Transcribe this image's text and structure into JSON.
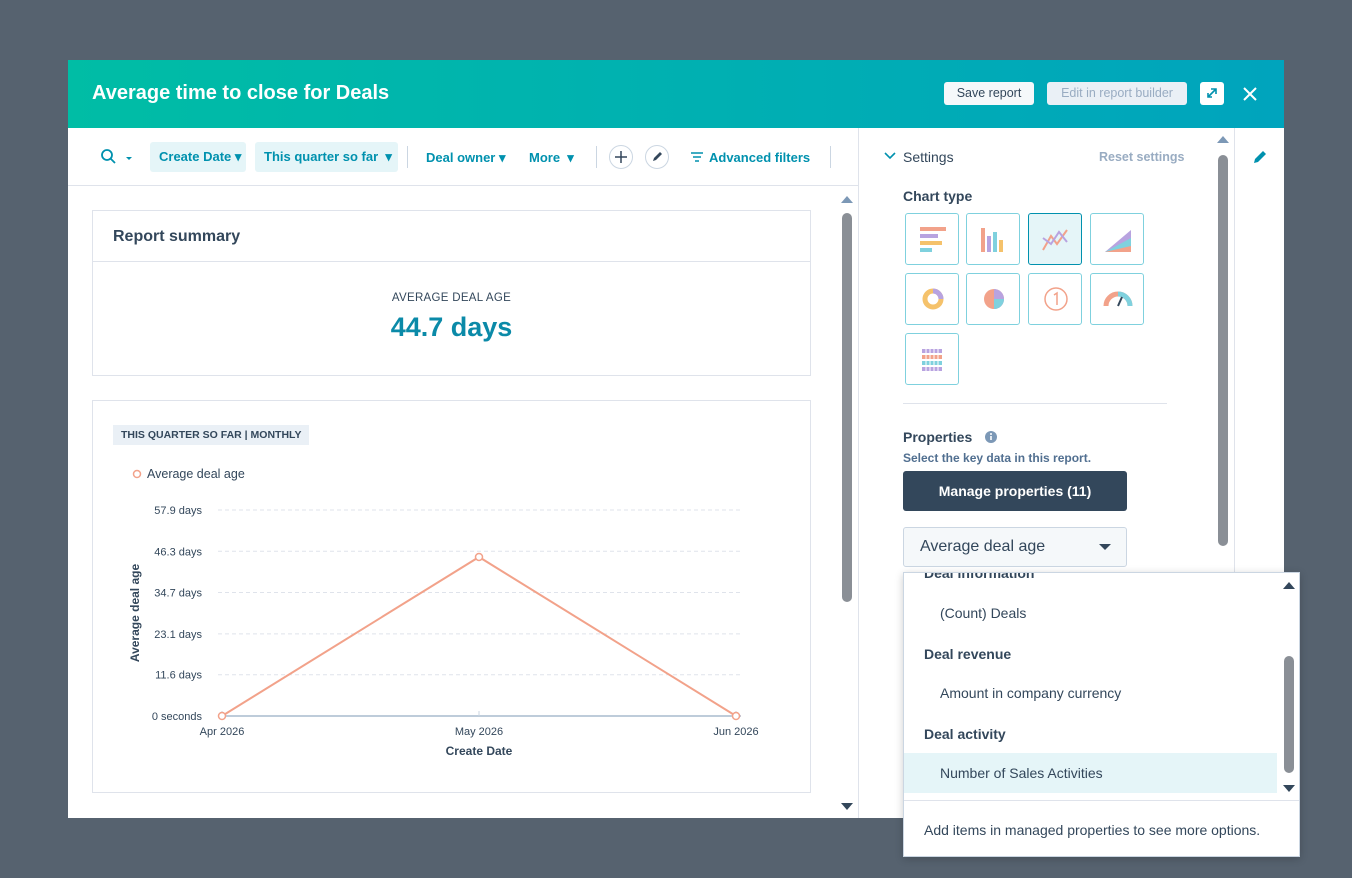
{
  "modal": {
    "title": "Average time to close for Deals",
    "save": "Save report",
    "edit": "Edit in report builder"
  },
  "filters": {
    "create_date": "Create Date",
    "date_range": "This quarter so far",
    "owner": "Deal owner",
    "more": "More",
    "advanced": "Advanced filters"
  },
  "summary": {
    "title": "Report summary",
    "metric_label": "AVERAGE DEAL AGE",
    "metric_value": "44.7 days"
  },
  "chart_data": {
    "type": "line",
    "tag": "THIS QUARTER SO FAR | MONTHLY",
    "x_label": "Create Date",
    "y_label": "Average deal age",
    "categories": [
      "Apr 2026",
      "May 2026",
      "Jun 2026"
    ],
    "series": [
      {
        "name": "Average deal age",
        "color": "#f2a28a",
        "values": [
          0,
          44.7,
          0
        ]
      }
    ],
    "ylim": [
      0,
      57.9
    ],
    "yticks": [
      {
        "value": 0,
        "label": "0 seconds"
      },
      {
        "value": 11.6,
        "label": "11.6 days"
      },
      {
        "value": 23.1,
        "label": "23.1 days"
      },
      {
        "value": 34.7,
        "label": "34.7 days"
      },
      {
        "value": 46.3,
        "label": "46.3 days"
      },
      {
        "value": 57.9,
        "label": "57.9 days"
      }
    ],
    "grid": true
  },
  "settings": {
    "title": "Settings",
    "reset": "Reset settings",
    "chart_type": "Chart type",
    "properties": "Properties",
    "properties_hint": "Select the key data in this report.",
    "manage": "Manage properties (11)",
    "selected_property": "Average deal age"
  },
  "menu": {
    "groups": [
      {
        "label": "Deal information",
        "items": [
          "(Count) Deals"
        ]
      },
      {
        "label": "Deal revenue",
        "items": [
          "Amount in company currency"
        ]
      },
      {
        "label": "Deal activity",
        "items": [
          "Number of Sales Activities"
        ]
      }
    ],
    "footer": "Add items in managed properties to see more options."
  }
}
